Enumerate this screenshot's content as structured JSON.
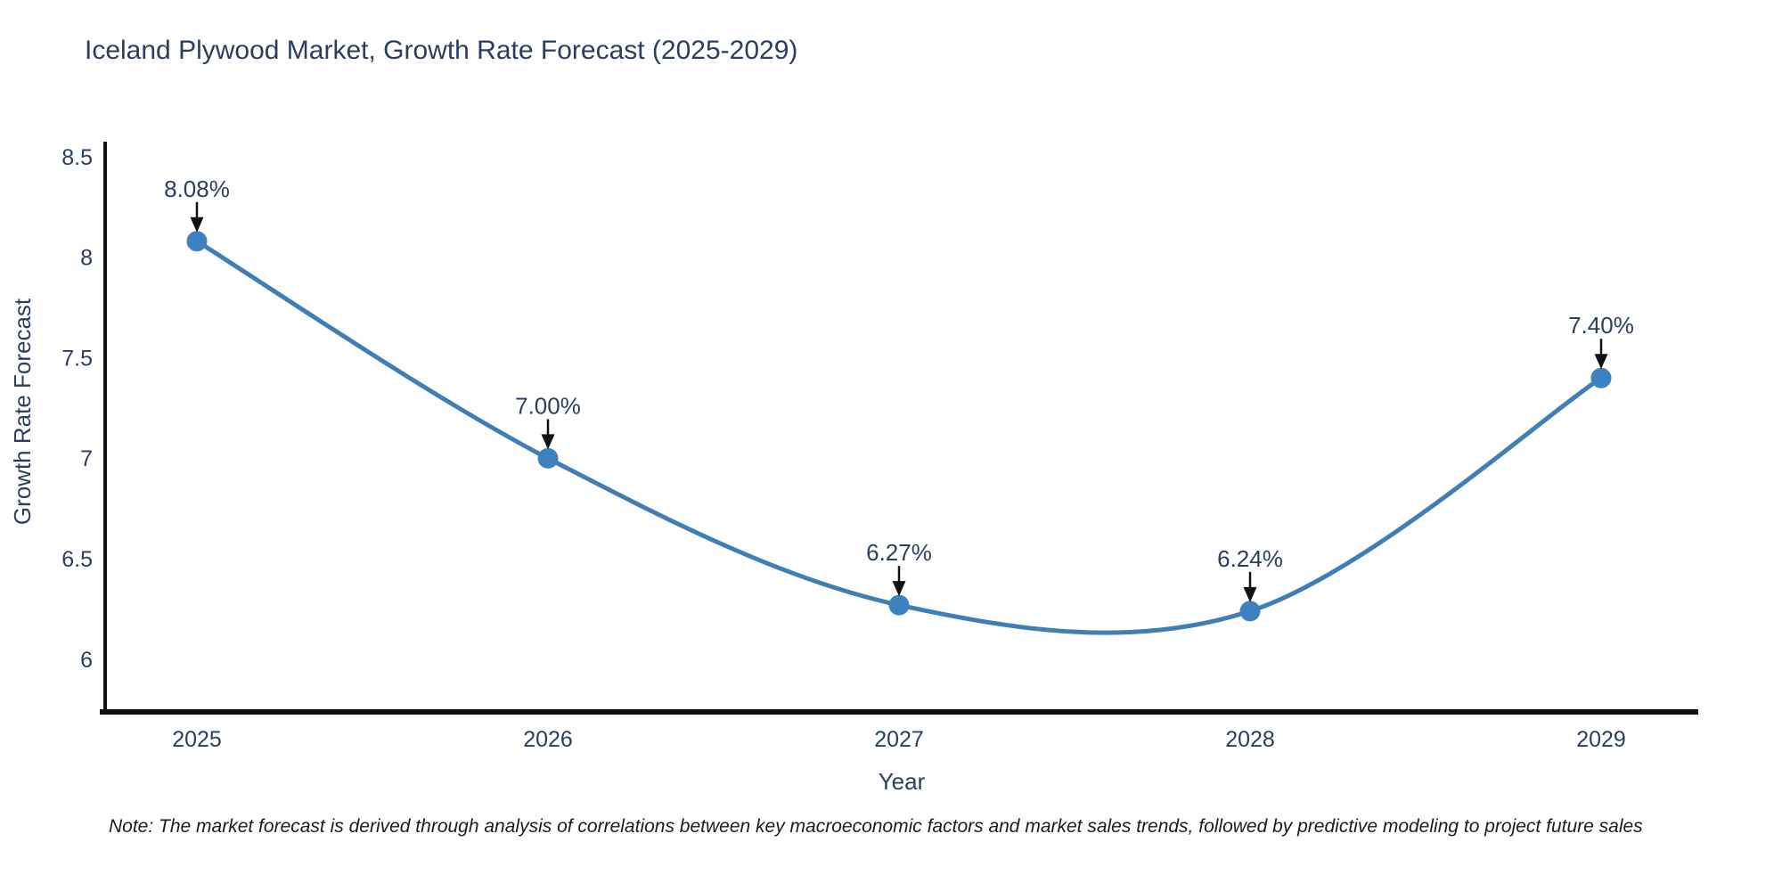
{
  "figure": {
    "title": "Iceland Plywood Market, Growth Rate Forecast (2025-2029)",
    "note": "Note: The market forecast is derived through analysis of correlations between key macroeconomic factors and market sales trends, followed by predictive modeling to project future sales"
  },
  "chart_data": {
    "type": "line",
    "line_shape": "spline",
    "x": [
      "2025",
      "2026",
      "2027",
      "2028",
      "2029"
    ],
    "values": [
      8.08,
      7.0,
      6.27,
      6.24,
      7.4
    ],
    "point_labels": [
      "8.08%",
      "7.00%",
      "6.27%",
      "6.24%",
      "7.40%"
    ],
    "title": "Iceland Plywood Market, Growth Rate Forecast (2025-2029)",
    "xlabel": "Year",
    "ylabel": "Growth Rate Forecast",
    "yticks": [
      8.5,
      8,
      7.5,
      7,
      6.5,
      6
    ],
    "ylim": [
      5.72,
      8.57
    ],
    "grid": false,
    "legend_position": "none",
    "colors": {
      "line": "#3f7fb5",
      "marker": "#3d82c0",
      "annotation_arrow": "#111111",
      "axis_line": "#111111",
      "text": "#2a3f5f",
      "note_text": "#1c1c1c",
      "background": "#ffffff"
    }
  }
}
